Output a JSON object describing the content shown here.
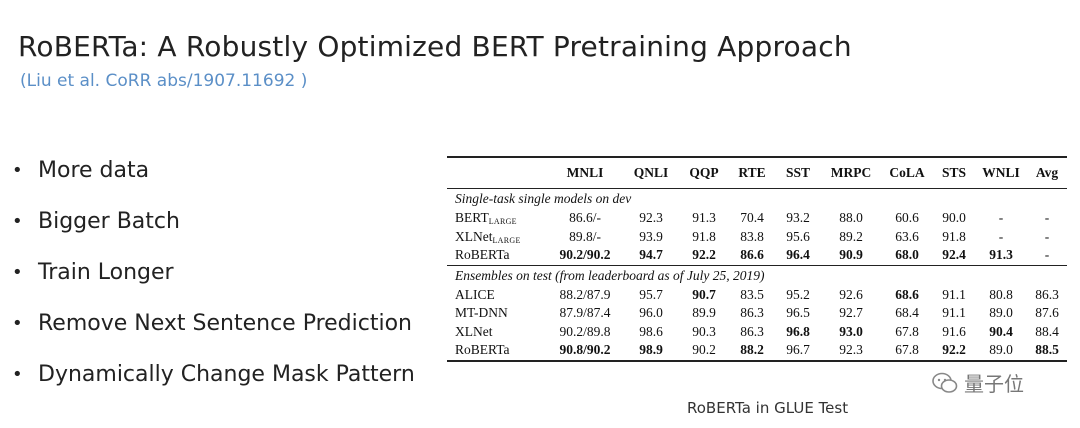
{
  "slide": {
    "title": "RoBERTa: A Robustly Optimized BERT Pretraining Approach",
    "citation": "(Liu et al. CoRR abs/1907.11692 )",
    "bullet_glyph": "•",
    "bullets": [
      "More data",
      "Bigger Batch",
      "Train Longer",
      "Remove Next Sentence Prediction",
      "Dynamically Change Mask Pattern"
    ],
    "caption": "RoBERTa in GLUE Test",
    "watermark_text": "量子位"
  },
  "table": {
    "headers": [
      "",
      "MNLI",
      "QNLI",
      "QQP",
      "RTE",
      "SST",
      "MRPC",
      "CoLA",
      "STS",
      "WNLI",
      "Avg"
    ],
    "section1_label": "Single-task single models on dev",
    "section1_rows": [
      {
        "model": "BERT",
        "sub": "LARGE",
        "cells": [
          "86.6/-",
          "92.3",
          "91.3",
          "70.4",
          "93.2",
          "88.0",
          "60.6",
          "90.0",
          "-",
          "-"
        ],
        "bold": []
      },
      {
        "model": "XLNet",
        "sub": "LARGE",
        "cells": [
          "89.8/-",
          "93.9",
          "91.8",
          "83.8",
          "95.6",
          "89.2",
          "63.6",
          "91.8",
          "-",
          "-"
        ],
        "bold": []
      },
      {
        "model": "RoBERTa",
        "sub": "",
        "cells": [
          "90.2/90.2",
          "94.7",
          "92.2",
          "86.6",
          "96.4",
          "90.9",
          "68.0",
          "92.4",
          "91.3",
          "-"
        ],
        "bold": [
          0,
          1,
          2,
          3,
          4,
          5,
          6,
          7,
          8
        ]
      }
    ],
    "section2_label": "Ensembles on test (from leaderboard as of July 25, 2019)",
    "section2_rows": [
      {
        "model": "ALICE",
        "sub": "",
        "cells": [
          "88.2/87.9",
          "95.7",
          "90.7",
          "83.5",
          "95.2",
          "92.6",
          "68.6",
          "91.1",
          "80.8",
          "86.3"
        ],
        "bold": [
          2,
          6
        ]
      },
      {
        "model": "MT-DNN",
        "sub": "",
        "cells": [
          "87.9/87.4",
          "96.0",
          "89.9",
          "86.3",
          "96.5",
          "92.7",
          "68.4",
          "91.1",
          "89.0",
          "87.6"
        ],
        "bold": []
      },
      {
        "model": "XLNet",
        "sub": "",
        "cells": [
          "90.2/89.8",
          "98.6",
          "90.3",
          "86.3",
          "96.8",
          "93.0",
          "67.8",
          "91.6",
          "90.4",
          "88.4"
        ],
        "bold": [
          4,
          5,
          8
        ]
      },
      {
        "model": "RoBERTa",
        "sub": "",
        "cells": [
          "90.8/90.2",
          "98.9",
          "90.2",
          "88.2",
          "96.7",
          "92.3",
          "67.8",
          "92.2",
          "89.0",
          "88.5"
        ],
        "bold": [
          0,
          1,
          3,
          7,
          9
        ]
      }
    ]
  }
}
